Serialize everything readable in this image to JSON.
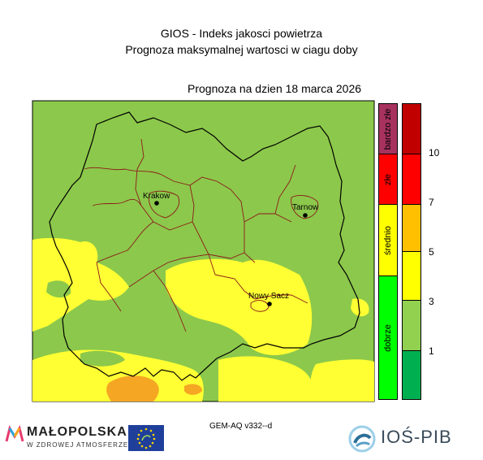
{
  "header": {
    "title_line1": "GIOS - Indeks jakosci powietrza",
    "title_line2": "Prognoza maksymalnej wartosci w ciagu doby",
    "date_line": "Prognoza na dzien  18 marca 2026"
  },
  "cities": [
    {
      "name": "Krakow"
    },
    {
      "name": "Tarnow"
    },
    {
      "name": "Nowy Sacz"
    }
  ],
  "legend": {
    "categories": [
      {
        "label": "bardzo złe",
        "color": "#a7325e"
      },
      {
        "label": "złe",
        "color": "#ff0000"
      },
      {
        "label": "średnio",
        "color": "#ffff00"
      },
      {
        "label": "dobrze",
        "color": "#00ff00"
      }
    ],
    "scale_colors": [
      "#c00000",
      "#ff0000",
      "#ff0000",
      "#ffc000",
      "#ffff00",
      "#92d050",
      "#00b050"
    ],
    "ticks": [
      "10",
      "7",
      "5",
      "3",
      "1"
    ]
  },
  "map_colors": {
    "good": "#8cc84b",
    "moderate": "#ffff33",
    "elevated": "#f5a623",
    "province_border": "#000000",
    "district_border": "#8b1a1a"
  },
  "footer": {
    "model": "GEM-AQ v332--d",
    "malopolska_name": "MAŁOPOLSKA",
    "malopolska_sub": "W ZDROWEJ ATMOSFERZE",
    "ios_name": "IOŚ-PIB"
  }
}
